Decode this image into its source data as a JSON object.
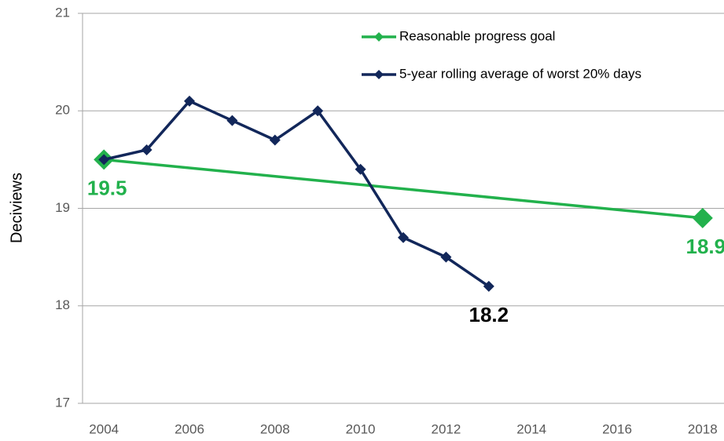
{
  "chart_data": {
    "type": "line",
    "y_label": "Deciviews",
    "xlim": [
      2003.5,
      2018.5
    ],
    "xticks": [
      2004,
      2006,
      2008,
      2010,
      2012,
      2014,
      2016,
      2018
    ],
    "ylim": [
      17,
      21
    ],
    "yticks": [
      17,
      18,
      19,
      20,
      21
    ],
    "grid": true,
    "legend": "top-right",
    "series": [
      {
        "name": "Reasonable progress goal",
        "color": "#22b14c",
        "x": [
          2004,
          2018
        ],
        "values": [
          19.5,
          18.9
        ],
        "value_labels": [
          "19.5",
          "18.9"
        ]
      },
      {
        "name": "5-year rolling average of worst 20% days",
        "color": "#12275a",
        "x": [
          2004,
          2005,
          2006,
          2007,
          2008,
          2009,
          2010,
          2011,
          2012,
          2013
        ],
        "values": [
          19.5,
          19.6,
          20.1,
          19.9,
          19.7,
          20.0,
          19.4,
          18.7,
          18.5,
          18.2
        ],
        "value_labels": [
          null,
          null,
          null,
          null,
          null,
          null,
          null,
          null,
          null,
          "18.2"
        ]
      }
    ]
  }
}
